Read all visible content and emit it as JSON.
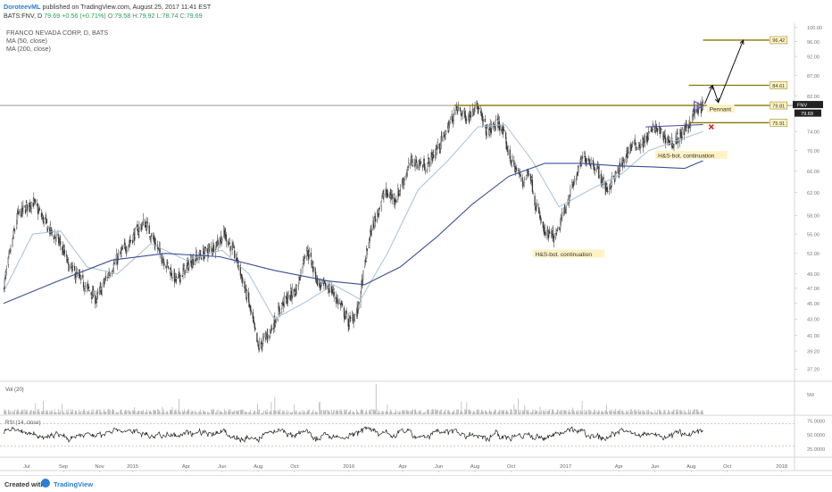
{
  "header": {
    "author": "DoroteevML",
    "published": "published on TradingView.com, August 25, 2017 11:41 EST",
    "symbol": "BATS:FNV, D",
    "last": "79.69",
    "change": "+0.56 (+0.71%)",
    "ohlc": [
      {
        "k": "O:",
        "v": "79.58"
      },
      {
        "k": "H:",
        "v": "79.92"
      },
      {
        "k": "L:",
        "v": "78.74"
      },
      {
        "k": "C:",
        "v": "79.69"
      }
    ]
  },
  "legend": {
    "title": "FRANCO NEVADA CORP, D, BATS",
    "ma50": "MA (50, close)",
    "ma200": "MA (200, close)"
  },
  "footer": {
    "created": "Created with",
    "brand": "TradingView"
  },
  "colors": {
    "price": "#333333",
    "ma50": "#a8c0d8",
    "ma200": "#3a4f96",
    "levels": "#8a7700",
    "label_bg": "#fff3c4",
    "pennant": "#4a4aa0",
    "stop": "#cc2b2b"
  },
  "chart_data": [
    {
      "type": "candlestick",
      "panel": "price",
      "title": "FRANCO NEVADA CORP, D, BATS",
      "y_axis_ticks": [
        37.2,
        39.2,
        41.0,
        43.0,
        45.0,
        47.0,
        49.0,
        52.0,
        55.0,
        58.0,
        62.0,
        66.0,
        70.0,
        74.0,
        78.0,
        82.0,
        87.0,
        92.0,
        96.0,
        100.0
      ],
      "y_tick_labels": [
        "37.20",
        "39.20",
        "41.00",
        "43.00",
        "45.00",
        "47.00",
        "49.00",
        "52.00",
        "55.00",
        "58.00",
        "62.00",
        "66.00",
        "70.00",
        "74.00",
        "78.00",
        "82.00",
        "87.00",
        "92.00",
        "96.00",
        "100.00"
      ],
      "ylim": [
        36.0,
        101.0
      ],
      "log_scale": true,
      "x_tick_labels": [
        "Jul",
        "Sep",
        "Nov",
        "2015",
        "Apr",
        "Jun",
        "Aug",
        "Oct",
        "2016",
        "Apr",
        "Jun",
        "Aug",
        "Oct",
        "2017",
        "Apr",
        "Jun",
        "Aug",
        "Oct",
        "2018"
      ],
      "price_path": [
        {
          "x": "2014-06-01",
          "y": 47.0
        },
        {
          "x": "2014-06-25",
          "y": 58.0
        },
        {
          "x": "2014-07-20",
          "y": 60.5
        },
        {
          "x": "2014-08-15",
          "y": 56.0
        },
        {
          "x": "2014-09-05",
          "y": 53.5
        },
        {
          "x": "2014-09-20",
          "y": 50.0
        },
        {
          "x": "2014-10-15",
          "y": 47.5
        },
        {
          "x": "2014-11-05",
          "y": 45.5
        },
        {
          "x": "2014-11-25",
          "y": 49.0
        },
        {
          "x": "2014-12-20",
          "y": 52.5
        },
        {
          "x": "2015-01-25",
          "y": 57.0
        },
        {
          "x": "2015-02-20",
          "y": 52.0
        },
        {
          "x": "2015-03-20",
          "y": 48.0
        },
        {
          "x": "2015-04-15",
          "y": 51.0
        },
        {
          "x": "2015-05-15",
          "y": 52.5
        },
        {
          "x": "2015-06-10",
          "y": 55.0
        },
        {
          "x": "2015-06-30",
          "y": 51.0
        },
        {
          "x": "2015-07-20",
          "y": 45.0
        },
        {
          "x": "2015-08-05",
          "y": 39.5
        },
        {
          "x": "2015-08-25",
          "y": 41.5
        },
        {
          "x": "2015-09-15",
          "y": 45.0
        },
        {
          "x": "2015-10-10",
          "y": 47.0
        },
        {
          "x": "2015-10-25",
          "y": 53.0
        },
        {
          "x": "2015-11-15",
          "y": 47.5
        },
        {
          "x": "2015-12-05",
          "y": 47.0
        },
        {
          "x": "2015-12-20",
          "y": 45.0
        },
        {
          "x": "2016-01-05",
          "y": 42.5
        },
        {
          "x": "2016-01-20",
          "y": 44.0
        },
        {
          "x": "2016-02-10",
          "y": 55.0
        },
        {
          "x": "2016-03-05",
          "y": 62.0
        },
        {
          "x": "2016-03-25",
          "y": 61.0
        },
        {
          "x": "2016-04-20",
          "y": 68.0
        },
        {
          "x": "2016-05-15",
          "y": 67.0
        },
        {
          "x": "2016-06-10",
          "y": 72.0
        },
        {
          "x": "2016-07-05",
          "y": 79.0
        },
        {
          "x": "2016-07-25",
          "y": 77.0
        },
        {
          "x": "2016-08-05",
          "y": 80.5
        },
        {
          "x": "2016-08-25",
          "y": 74.0
        },
        {
          "x": "2016-09-15",
          "y": 76.0
        },
        {
          "x": "2016-10-05",
          "y": 68.0
        },
        {
          "x": "2016-10-25",
          "y": 64.0
        },
        {
          "x": "2016-11-05",
          "y": 66.5
        },
        {
          "x": "2016-11-15",
          "y": 60.0
        },
        {
          "x": "2016-12-01",
          "y": 55.0
        },
        {
          "x": "2016-12-20",
          "y": 54.5
        },
        {
          "x": "2017-01-10",
          "y": 61.0
        },
        {
          "x": "2017-02-05",
          "y": 69.0
        },
        {
          "x": "2017-02-25",
          "y": 67.0
        },
        {
          "x": "2017-03-15",
          "y": 62.5
        },
        {
          "x": "2017-04-05",
          "y": 66.0
        },
        {
          "x": "2017-04-25",
          "y": 71.0
        },
        {
          "x": "2017-05-15",
          "y": 71.5
        },
        {
          "x": "2017-06-05",
          "y": 75.0
        },
        {
          "x": "2017-06-20",
          "y": 73.0
        },
        {
          "x": "2017-07-05",
          "y": 71.5
        },
        {
          "x": "2017-07-25",
          "y": 74.0
        },
        {
          "x": "2017-08-10",
          "y": 78.0
        },
        {
          "x": "2017-08-25",
          "y": 79.7
        }
      ],
      "ma50": [
        {
          "x": "2014-06-01",
          "y": 46.5
        },
        {
          "x": "2014-07-20",
          "y": 55.0
        },
        {
          "x": "2014-09-05",
          "y": 55.5
        },
        {
          "x": "2014-10-20",
          "y": 50.0
        },
        {
          "x": "2014-12-10",
          "y": 49.0
        },
        {
          "x": "2015-02-05",
          "y": 53.5
        },
        {
          "x": "2015-04-05",
          "y": 51.0
        },
        {
          "x": "2015-06-05",
          "y": 52.5
        },
        {
          "x": "2015-07-20",
          "y": 49.0
        },
        {
          "x": "2015-09-01",
          "y": 43.0
        },
        {
          "x": "2015-10-20",
          "y": 45.0
        },
        {
          "x": "2015-12-10",
          "y": 47.5
        },
        {
          "x": "2016-01-25",
          "y": 45.5
        },
        {
          "x": "2016-03-10",
          "y": 52.0
        },
        {
          "x": "2016-05-01",
          "y": 62.5
        },
        {
          "x": "2016-06-20",
          "y": 68.0
        },
        {
          "x": "2016-08-10",
          "y": 75.0
        },
        {
          "x": "2016-09-25",
          "y": 75.5
        },
        {
          "x": "2016-11-10",
          "y": 68.0
        },
        {
          "x": "2016-12-25",
          "y": 59.5
        },
        {
          "x": "2017-02-15",
          "y": 62.5
        },
        {
          "x": "2017-04-10",
          "y": 65.5
        },
        {
          "x": "2017-05-25",
          "y": 70.0
        },
        {
          "x": "2017-07-10",
          "y": 72.0
        },
        {
          "x": "2017-08-25",
          "y": 74.0
        }
      ],
      "ma200": [
        {
          "x": "2014-06-01",
          "y": 45.0
        },
        {
          "x": "2014-09-01",
          "y": 48.0
        },
        {
          "x": "2014-12-01",
          "y": 51.0
        },
        {
          "x": "2015-03-01",
          "y": 52.0
        },
        {
          "x": "2015-06-01",
          "y": 51.5
        },
        {
          "x": "2015-09-01",
          "y": 49.5
        },
        {
          "x": "2015-12-01",
          "y": 48.0
        },
        {
          "x": "2016-02-01",
          "y": 47.5
        },
        {
          "x": "2016-04-01",
          "y": 50.0
        },
        {
          "x": "2016-06-01",
          "y": 54.5
        },
        {
          "x": "2016-08-01",
          "y": 60.0
        },
        {
          "x": "2016-10-01",
          "y": 65.0
        },
        {
          "x": "2016-12-01",
          "y": 67.5
        },
        {
          "x": "2017-02-01",
          "y": 67.5
        },
        {
          "x": "2017-04-01",
          "y": 67.0
        },
        {
          "x": "2017-06-01",
          "y": 66.8
        },
        {
          "x": "2017-07-25",
          "y": 66.5
        },
        {
          "x": "2017-08-25",
          "y": 68.0
        }
      ],
      "levels": [
        {
          "value": 96.42,
          "label": "96.42",
          "from": "2017-08-25",
          "to": "2017-12-15"
        },
        {
          "value": 84.61,
          "label": "84.61",
          "from": "2017-08-01",
          "to": "2017-12-15"
        },
        {
          "value": 79.81,
          "label": "79.81",
          "from": "2016-07-01",
          "to": "2017-12-15"
        },
        {
          "value": 75.91,
          "label": "75.91",
          "from": "2017-08-01",
          "to": "2017-12-15"
        }
      ],
      "price_labels": [
        {
          "value": 79.81,
          "label": "FNV"
        },
        {
          "value": 79.69,
          "label": "79.69"
        }
      ],
      "horizontal_line": 79.81,
      "projection": [
        {
          "x": "2017-08-28",
          "y": 80.2
        },
        {
          "x": "2017-09-10",
          "y": 84.6
        },
        {
          "x": "2017-09-20",
          "y": 80.5
        },
        {
          "x": "2017-11-01",
          "y": 96.4
        }
      ],
      "neckline": [
        {
          "x": "2017-05-20",
          "y": 75.0
        },
        {
          "x": "2017-08-25",
          "y": 75.5
        }
      ],
      "pennant": {
        "x_start": "2017-08-10",
        "x_end": "2017-08-25",
        "y_top": 80.8,
        "y_bottom": 78.6
      },
      "stop_marker": {
        "x": "2017-09-08",
        "y": 75.0
      },
      "annotations": [
        {
          "text": "Pennant",
          "x": "2017-09-05",
          "y": 78.7
        },
        {
          "text": "H&S-bot. continuation",
          "x": "2017-06-10",
          "y": 68.8
        },
        {
          "text": "H&S-bot. continuation",
          "x": "2016-11-15",
          "y": 51.7
        }
      ]
    },
    {
      "type": "bar",
      "panel": "volume",
      "title": "Vol (20)",
      "y_tick_labels": [
        "5M"
      ]
    },
    {
      "type": "line",
      "panel": "rsi",
      "title": "RSI (14, close)",
      "y_tick_labels": [
        "75.0000",
        "50.0000",
        "25.0000"
      ],
      "ylim": [
        10,
        85
      ],
      "levels": [
        70,
        30
      ]
    }
  ]
}
